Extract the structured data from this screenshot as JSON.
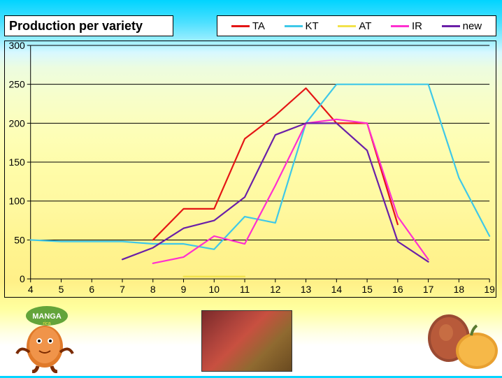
{
  "title": "Production per variety",
  "chart": {
    "type": "line",
    "background": "transparent",
    "grid_color": "#000000",
    "axis_color": "#000000",
    "xlim": [
      4,
      19
    ],
    "ylim": [
      0,
      300
    ],
    "ytick_step": 50,
    "xtick_step": 1,
    "xticks": [
      4,
      5,
      6,
      7,
      8,
      9,
      10,
      11,
      12,
      13,
      14,
      15,
      16,
      17,
      18,
      19
    ],
    "yticks": [
      0,
      50,
      100,
      150,
      200,
      250,
      300
    ],
    "label_fontsize": 14,
    "line_width": 2.2,
    "series": [
      {
        "key": "TA",
        "label": "TA",
        "color": "#e41515",
        "x": [
          8,
          9,
          10,
          11,
          12,
          13,
          14,
          15,
          16
        ],
        "y": [
          50,
          90,
          90,
          180,
          210,
          245,
          200,
          200,
          70
        ]
      },
      {
        "key": "KT",
        "label": "KT",
        "color": "#3ec8e8",
        "x": [
          4,
          5,
          6,
          7,
          8,
          9,
          10,
          11,
          12,
          13,
          14,
          15,
          16,
          17,
          18,
          19
        ],
        "y": [
          50,
          48,
          48,
          48,
          45,
          45,
          38,
          80,
          72,
          200,
          250,
          250,
          250,
          250,
          130,
          55
        ]
      },
      {
        "key": "AT",
        "label": "AT",
        "color": "#f2e24a",
        "x": [
          9,
          10,
          11
        ],
        "y": [
          3,
          3,
          3
        ]
      },
      {
        "key": "IR",
        "label": "IR",
        "color": "#ff2fd0",
        "x": [
          8,
          9,
          10,
          11,
          12,
          13,
          14,
          15,
          16,
          17
        ],
        "y": [
          20,
          28,
          55,
          45,
          120,
          200,
          205,
          200,
          80,
          25
        ]
      },
      {
        "key": "new",
        "label": "new",
        "color": "#6a1fa8",
        "x": [
          7,
          8,
          9,
          10,
          11,
          12,
          13,
          14,
          15,
          16,
          17
        ],
        "y": [
          25,
          40,
          65,
          75,
          105,
          185,
          200,
          200,
          165,
          48,
          22
        ]
      }
    ]
  },
  "legend": {
    "items": [
      {
        "label": "TA",
        "color": "#e41515"
      },
      {
        "label": "KT",
        "color": "#3ec8e8"
      },
      {
        "label": "AT",
        "color": "#f2e24a"
      },
      {
        "label": "IR",
        "color": "#ff2fd0"
      },
      {
        "label": "new",
        "color": "#6a1fa8"
      }
    ]
  },
  "footer_images": {
    "mascot_label": "manga-rica-mascot",
    "photo_label": "mango-photo",
    "mango_label": "mango-illustration"
  }
}
